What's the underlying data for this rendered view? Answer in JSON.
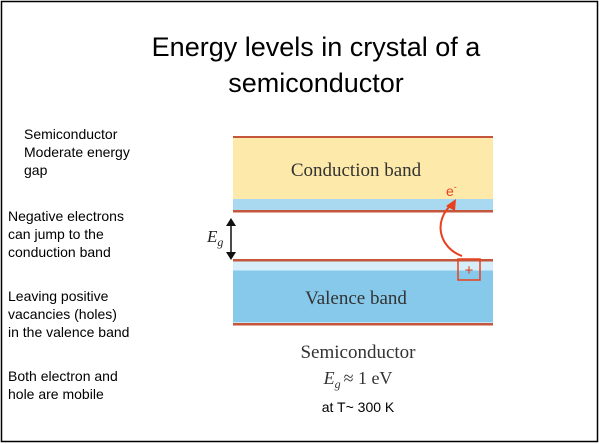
{
  "title": {
    "lines": [
      "Energy levels in crystal of a",
      "semiconductor"
    ]
  },
  "notes": [
    {
      "lines": [
        "Semiconductor",
        "Moderate energy",
        "gap"
      ]
    },
    {
      "lines": [
        "Negative electrons",
        "can jump to the",
        "conduction band"
      ]
    },
    {
      "lines": [
        "Leaving positive",
        "vacancies (holes)",
        "in the valence band"
      ]
    },
    {
      "lines": [
        "Both electron and",
        "hole are mobile"
      ]
    }
  ],
  "diagram": {
    "conduction_label": "Conduction band",
    "valence_label": "Valence band",
    "gap_symbol": "E",
    "gap_subscript": "g",
    "electron_symbol": "e",
    "electron_superscript": "-",
    "hole_symbol": "+",
    "caption": "Semiconductor",
    "energy_symbol": "E",
    "energy_subscript": "g",
    "energy_relation": "≈ 1 eV",
    "temperature": "at T~ 300 K"
  }
}
